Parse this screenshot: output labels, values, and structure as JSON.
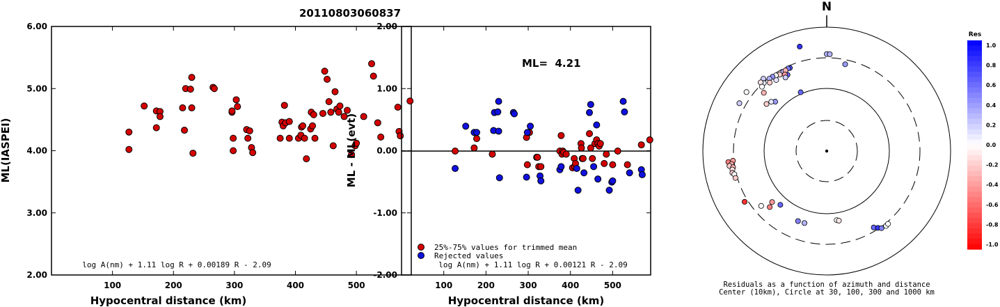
{
  "title": "20110803060837",
  "chart_data": [
    {
      "type": "scatter",
      "name": "ml-vs-distance",
      "xlabel": "Hypocentral distance (km)",
      "ylabel": "ML(IASPEI)",
      "xlim": [
        0,
        590
      ],
      "ylim": [
        2.0,
        6.0
      ],
      "xticks": [
        "100",
        "200",
        "300",
        "400",
        "500"
      ],
      "yticks": [
        "2.00",
        "3.00",
        "4.00",
        "5.00",
        "6.00"
      ],
      "formula": "log A(nm) + 1.11 log R + 0.00189 R - 2.09",
      "points": [
        [
          127,
          4.3
        ],
        [
          127,
          4.02
        ],
        [
          152,
          4.72
        ],
        [
          172,
          4.37
        ],
        [
          172,
          4.64
        ],
        [
          178,
          4.63
        ],
        [
          178,
          4.55
        ],
        [
          215,
          4.69
        ],
        [
          218,
          4.33
        ],
        [
          220,
          5.0
        ],
        [
          228,
          4.99
        ],
        [
          230,
          5.18
        ],
        [
          230,
          4.69
        ],
        [
          232,
          3.96
        ],
        [
          265,
          5.02
        ],
        [
          267,
          5.0
        ],
        [
          296,
          4.62
        ],
        [
          296,
          4.64
        ],
        [
          298,
          4.2
        ],
        [
          298,
          4.0
        ],
        [
          303,
          4.82
        ],
        [
          305,
          4.71
        ],
        [
          320,
          4.34
        ],
        [
          322,
          4.2
        ],
        [
          325,
          4.32
        ],
        [
          328,
          4.05
        ],
        [
          330,
          3.97
        ],
        [
          375,
          4.2
        ],
        [
          378,
          4.46
        ],
        [
          380,
          4.4
        ],
        [
          382,
          4.73
        ],
        [
          384,
          4.45
        ],
        [
          390,
          4.47
        ],
        [
          390,
          4.2
        ],
        [
          405,
          4.2
        ],
        [
          409,
          4.25
        ],
        [
          410,
          4.38
        ],
        [
          412,
          4.4
        ],
        [
          415,
          4.2
        ],
        [
          418,
          3.87
        ],
        [
          425,
          4.35
        ],
        [
          426,
          4.62
        ],
        [
          428,
          4.4
        ],
        [
          430,
          4.58
        ],
        [
          432,
          4.2
        ],
        [
          445,
          4.6
        ],
        [
          448,
          5.28
        ],
        [
          452,
          5.15
        ],
        [
          455,
          4.79
        ],
        [
          458,
          4.62
        ],
        [
          462,
          4.08
        ],
        [
          465,
          4.95
        ],
        [
          468,
          4.67
        ],
        [
          471,
          4.62
        ],
        [
          473,
          4.72
        ],
        [
          480,
          4.55
        ],
        [
          485,
          4.65
        ],
        [
          492,
          3.94
        ],
        [
          498,
          4.08
        ],
        [
          500,
          4.12
        ],
        [
          512,
          4.55
        ],
        [
          525,
          5.4
        ],
        [
          528,
          5.2
        ],
        [
          535,
          4.45
        ],
        [
          540,
          4.22
        ],
        [
          568,
          4.7
        ],
        [
          570,
          4.31
        ],
        [
          572,
          4.24
        ],
        [
          588,
          4.8
        ]
      ]
    },
    {
      "type": "scatter",
      "name": "ml-residual-vs-distance",
      "xlabel": "Hypocentral distance (km)",
      "ylabel": "ML - ML(evt)",
      "xlim": [
        0,
        590
      ],
      "ylim": [
        -2.0,
        2.0
      ],
      "xticks": [
        "100",
        "200",
        "300",
        "400",
        "500"
      ],
      "yticks": [
        "-2.00",
        "-1.00",
        "0.00",
        "1.00",
        "2.00"
      ],
      "annotation": "ML=  4.21",
      "formula": "log A(nm) + 1.11 log R + 0.00121 R - 2.09",
      "legend": [
        "25%-75% values for trimmed mean",
        "Rejected values"
      ],
      "series": [
        {
          "name": "25%-75% values for trimmed mean",
          "color": "#d40000",
          "points": [
            [
              127,
              0.0
            ],
            [
              172,
              0.05
            ],
            [
              178,
              0.2
            ],
            [
              215,
              -0.05
            ],
            [
              296,
              0.22
            ],
            [
              298,
              -0.22
            ],
            [
              303,
              0.3
            ],
            [
              320,
              -0.1
            ],
            [
              322,
              -0.1
            ],
            [
              325,
              -0.25
            ],
            [
              330,
              -0.25
            ],
            [
              375,
              0.0
            ],
            [
              378,
              0.25
            ],
            [
              380,
              -0.05
            ],
            [
              382,
              0.0
            ],
            [
              384,
              -0.02
            ],
            [
              390,
              -0.05
            ],
            [
              405,
              -0.27
            ],
            [
              409,
              -0.12
            ],
            [
              410,
              -0.25
            ],
            [
              412,
              -0.2
            ],
            [
              425,
              0.12
            ],
            [
              426,
              0.05
            ],
            [
              428,
              -0.12
            ],
            [
              430,
              -0.12
            ],
            [
              445,
              0.28
            ],
            [
              448,
              0.05
            ],
            [
              452,
              -0.12
            ],
            [
              458,
              0.12
            ],
            [
              462,
              0.18
            ],
            [
              465,
              0.12
            ],
            [
              468,
              0.08
            ],
            [
              471,
              0.12
            ],
            [
              480,
              -0.2
            ],
            [
              485,
              -0.05
            ],
            [
              500,
              -0.22
            ],
            [
              512,
              0.0
            ],
            [
              535,
              -0.22
            ],
            [
              568,
              0.1
            ],
            [
              588,
              0.18
            ]
          ]
        },
        {
          "name": "Rejected values",
          "color": "#1010e0",
          "points": [
            [
              127,
              -0.28
            ],
            [
              152,
              0.4
            ],
            [
              172,
              0.3
            ],
            [
              178,
              0.3
            ],
            [
              218,
              0.33
            ],
            [
              220,
              0.62
            ],
            [
              228,
              0.63
            ],
            [
              230,
              0.8
            ],
            [
              230,
              0.32
            ],
            [
              232,
              -0.43
            ],
            [
              265,
              0.62
            ],
            [
              267,
              0.6
            ],
            [
              296,
              -0.42
            ],
            [
              298,
              0.3
            ],
            [
              305,
              0.4
            ],
            [
              328,
              -0.4
            ],
            [
              330,
              -0.48
            ],
            [
              375,
              -0.3
            ],
            [
              378,
              -0.25
            ],
            [
              415,
              -0.28
            ],
            [
              418,
              -0.63
            ],
            [
              432,
              -0.35
            ],
            [
              445,
              0.62
            ],
            [
              448,
              0.75
            ],
            [
              455,
              -0.25
            ],
            [
              462,
              0.42
            ],
            [
              465,
              -0.45
            ],
            [
              492,
              -0.63
            ],
            [
              498,
              -0.5
            ],
            [
              500,
              -0.48
            ],
            [
              525,
              0.8
            ],
            [
              528,
              0.63
            ],
            [
              540,
              -0.35
            ],
            [
              568,
              -0.3
            ],
            [
              570,
              -0.38
            ]
          ]
        }
      ]
    },
    {
      "type": "scatter",
      "name": "azimuth-residual-polar",
      "north_label": "N",
      "caption_1": "Residuals as a function of azimuth and distance",
      "caption_2": "Center (10km), Circle at 30, 100, 300 and 1000 km",
      "colorbar": {
        "title": "Res",
        "range": [
          -1.0,
          1.0
        ],
        "labels": [
          "1.0",
          "0.8",
          "0.6",
          "0.4",
          "0.2",
          "0.0",
          "-0.2",
          "-0.4",
          "-0.6",
          "-0.8",
          "-1.0"
        ],
        "positive_color": "#0000ff",
        "negative_color": "#ff0000"
      },
      "stations": [
        {
          "az": 345.5,
          "r": 0.871,
          "res": 0.8
        },
        {
          "az": 0.0,
          "r": 0.783,
          "res": 0.3
        },
        {
          "az": 1.8,
          "r": 0.782,
          "res": 0.3
        },
        {
          "az": 12.0,
          "r": 0.716,
          "res": 0.4
        },
        {
          "az": 332.8,
          "r": 0.692,
          "res": 0.6
        },
        {
          "az": 331.3,
          "r": 0.731,
          "res": 0.3
        },
        {
          "az": 324.6,
          "r": 0.704,
          "res": 0.1
        },
        {
          "az": 336.1,
          "r": 0.734,
          "res": 0.7
        },
        {
          "az": 334.9,
          "r": 0.736,
          "res": 0.5
        },
        {
          "az": 332.9,
          "r": 0.731,
          "res": -0.3
        },
        {
          "az": 331.3,
          "r": 0.704,
          "res": -0.4
        },
        {
          "az": 330.7,
          "r": 0.681,
          "res": 0.2
        },
        {
          "az": 328.4,
          "r": 0.724,
          "res": -0.2
        },
        {
          "az": 326.1,
          "r": 0.736,
          "res": 0.0
        },
        {
          "az": 323.9,
          "r": 0.742,
          "res": 0.4
        },
        {
          "az": 321.6,
          "r": 0.745,
          "res": 0.3
        },
        {
          "az": 320.2,
          "r": 0.719,
          "res": -0.2
        },
        {
          "az": 318.8,
          "r": 0.776,
          "res": 0.2
        },
        {
          "az": 317.2,
          "r": 0.748,
          "res": 0.1
        },
        {
          "az": 316.1,
          "r": 0.769,
          "res": -0.1
        },
        {
          "az": 314.8,
          "r": 0.737,
          "res": 0.0
        },
        {
          "az": 312.8,
          "r": 0.692,
          "res": -0.3
        },
        {
          "az": 336.1,
          "r": 0.519,
          "res": 0.6
        },
        {
          "az": 313.8,
          "r": 0.576,
          "res": 0.4
        },
        {
          "az": 311.6,
          "r": 0.599,
          "res": 0.1
        },
        {
          "az": 308.0,
          "r": 0.617,
          "res": -0.2
        },
        {
          "az": 306.3,
          "r": 0.804,
          "res": 0.0
        },
        {
          "az": 298.7,
          "r": 0.804,
          "res": 0.2
        },
        {
          "az": 263.6,
          "r": 0.799,
          "res": -0.5
        },
        {
          "az": 264.1,
          "r": 0.761,
          "res": -0.4
        },
        {
          "az": 262.2,
          "r": 0.776,
          "res": -0.3
        },
        {
          "az": 261.3,
          "r": 0.794,
          "res": -0.2
        },
        {
          "az": 260.2,
          "r": 0.767,
          "res": -0.3
        },
        {
          "az": 258.9,
          "r": 0.776,
          "res": -0.1
        },
        {
          "az": 257.0,
          "r": 0.782,
          "res": -0.2
        },
        {
          "az": 255.9,
          "r": 0.769,
          "res": 0.0
        },
        {
          "az": 253.6,
          "r": 0.768,
          "res": -0.2
        },
        {
          "az": 238.3,
          "r": 0.779,
          "res": -0.8
        },
        {
          "az": 230.1,
          "r": 0.69,
          "res": 0.0
        },
        {
          "az": 225.5,
          "r": 0.645,
          "res": -0.5
        },
        {
          "az": 227.0,
          "r": 0.603,
          "res": -0.4
        },
        {
          "az": 220.8,
          "r": 0.573,
          "res": 0.6
        },
        {
          "az": 202.3,
          "r": 0.611,
          "res": 0.5
        },
        {
          "az": 197.2,
          "r": 0.608,
          "res": 0.3
        },
        {
          "az": 171.8,
          "r": 0.563,
          "res": 0.0
        },
        {
          "az": 170.1,
          "r": 0.57,
          "res": -0.1
        },
        {
          "az": 148.4,
          "r": 0.724,
          "res": 0.6
        },
        {
          "az": 146.3,
          "r": 0.745,
          "res": 0.8
        },
        {
          "az": 144.6,
          "r": 0.763,
          "res": 0.5
        },
        {
          "az": 141.6,
          "r": 0.771,
          "res": 0.0
        },
        {
          "az": 139.9,
          "r": 0.768,
          "res": 0.0
        }
      ]
    }
  ]
}
